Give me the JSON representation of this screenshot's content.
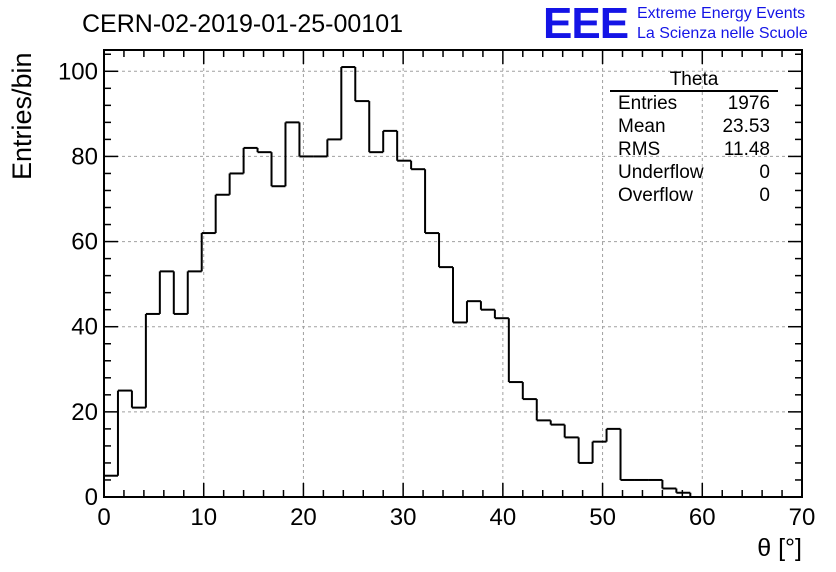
{
  "header": {
    "title": "CERN-02-2019-01-25-00101"
  },
  "logo": {
    "letters": "EEE",
    "line1": "Extreme Energy Events",
    "line2": "La Scienza nelle Scuole",
    "color": "#1414e6"
  },
  "stats": {
    "title": "Theta",
    "rows": [
      {
        "label": "Entries",
        "value": "1976"
      },
      {
        "label": "Mean",
        "value": "23.53"
      },
      {
        "label": "RMS",
        "value": "11.48"
      },
      {
        "label": "Underflow",
        "value": "0"
      },
      {
        "label": "Overflow",
        "value": "0"
      }
    ]
  },
  "chart_data": {
    "type": "bar",
    "histogram": true,
    "title": "CERN-02-2019-01-25-00101",
    "xlabel": "θ [°]",
    "ylabel": "Entries/bin",
    "xlim": [
      0,
      70
    ],
    "ylim": [
      0,
      105
    ],
    "bin_width": 1.4,
    "bin_edges_start": 0,
    "values": [
      5,
      25,
      21,
      43,
      53,
      43,
      53,
      62,
      71,
      76,
      82,
      81,
      73,
      88,
      80,
      80,
      84,
      101,
      93,
      81,
      86,
      79,
      77,
      62,
      54,
      41,
      46,
      44,
      42,
      27,
      23,
      18,
      17,
      14,
      8,
      13,
      16,
      4,
      4,
      4,
      2,
      1,
      0,
      0,
      0,
      0,
      0,
      0,
      0,
      0
    ],
    "xticks": [
      0,
      10,
      20,
      30,
      40,
      50,
      60,
      70
    ],
    "yticks": [
      0,
      20,
      40,
      60,
      80,
      100
    ],
    "grid": true,
    "line_color": "#000000"
  }
}
